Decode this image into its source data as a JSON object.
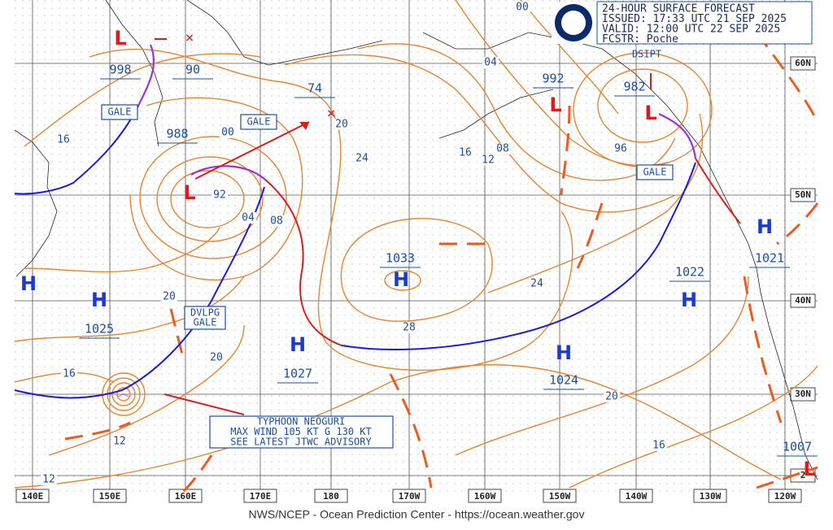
{
  "header": {
    "lines": [
      "24-HOUR SURFACE FORECAST",
      "ISSUED: 17:33 UTC 21 SEP 2025",
      "VALID:  12:00 UTC 22 SEP 2025",
      "FCSTR:  Poche"
    ]
  },
  "footer": "NWS/NCEP - Ocean Prediction Center - https://ocean.weather.gov",
  "longitudes": [
    "140E",
    "150E",
    "160E",
    "170E",
    "180",
    "170W",
    "160W",
    "150W",
    "140W",
    "130W",
    "120W"
  ],
  "latitudes": [
    "60N",
    "50N",
    "40N",
    "30N",
    "2"
  ],
  "centers": [
    {
      "symbol": "L",
      "pressure": "998"
    },
    {
      "pressure": "90"
    },
    {
      "symbol": "L",
      "pressure": "988"
    },
    {
      "pressure": "74"
    },
    {
      "symbol": "L",
      "pressure": "992"
    },
    {
      "symbol": "L",
      "pressure": "982"
    },
    {
      "symbol": "H",
      "pressure": "1033"
    },
    {
      "symbol": "H",
      "pressure": "1025"
    },
    {
      "symbol": "H",
      "pressure": "1027"
    },
    {
      "symbol": "H",
      "pressure": "1024"
    },
    {
      "symbol": "H",
      "pressure": "1022"
    },
    {
      "symbol": "H",
      "pressure": "1021"
    },
    {
      "symbol": "L",
      "pressure": "1007"
    },
    {
      "symbol": "H"
    }
  ],
  "isobar_labels": [
    "16",
    "00",
    "92",
    "04",
    "08",
    "20",
    "24",
    "16",
    "12",
    "08",
    "04",
    "00",
    "96",
    "24",
    "28",
    "20",
    "20",
    "20",
    "16",
    "16",
    "12",
    "12"
  ],
  "boxed_labels": [
    "GALE",
    "GALE",
    "GALE",
    "DSIPT"
  ],
  "developing": [
    "DVLPG",
    "GALE"
  ],
  "typhoon": [
    "TYPHOON NEOGURI",
    "MAX WIND 105 KT G 130 KT",
    "SEE LATEST JTWC ADVISORY"
  ]
}
